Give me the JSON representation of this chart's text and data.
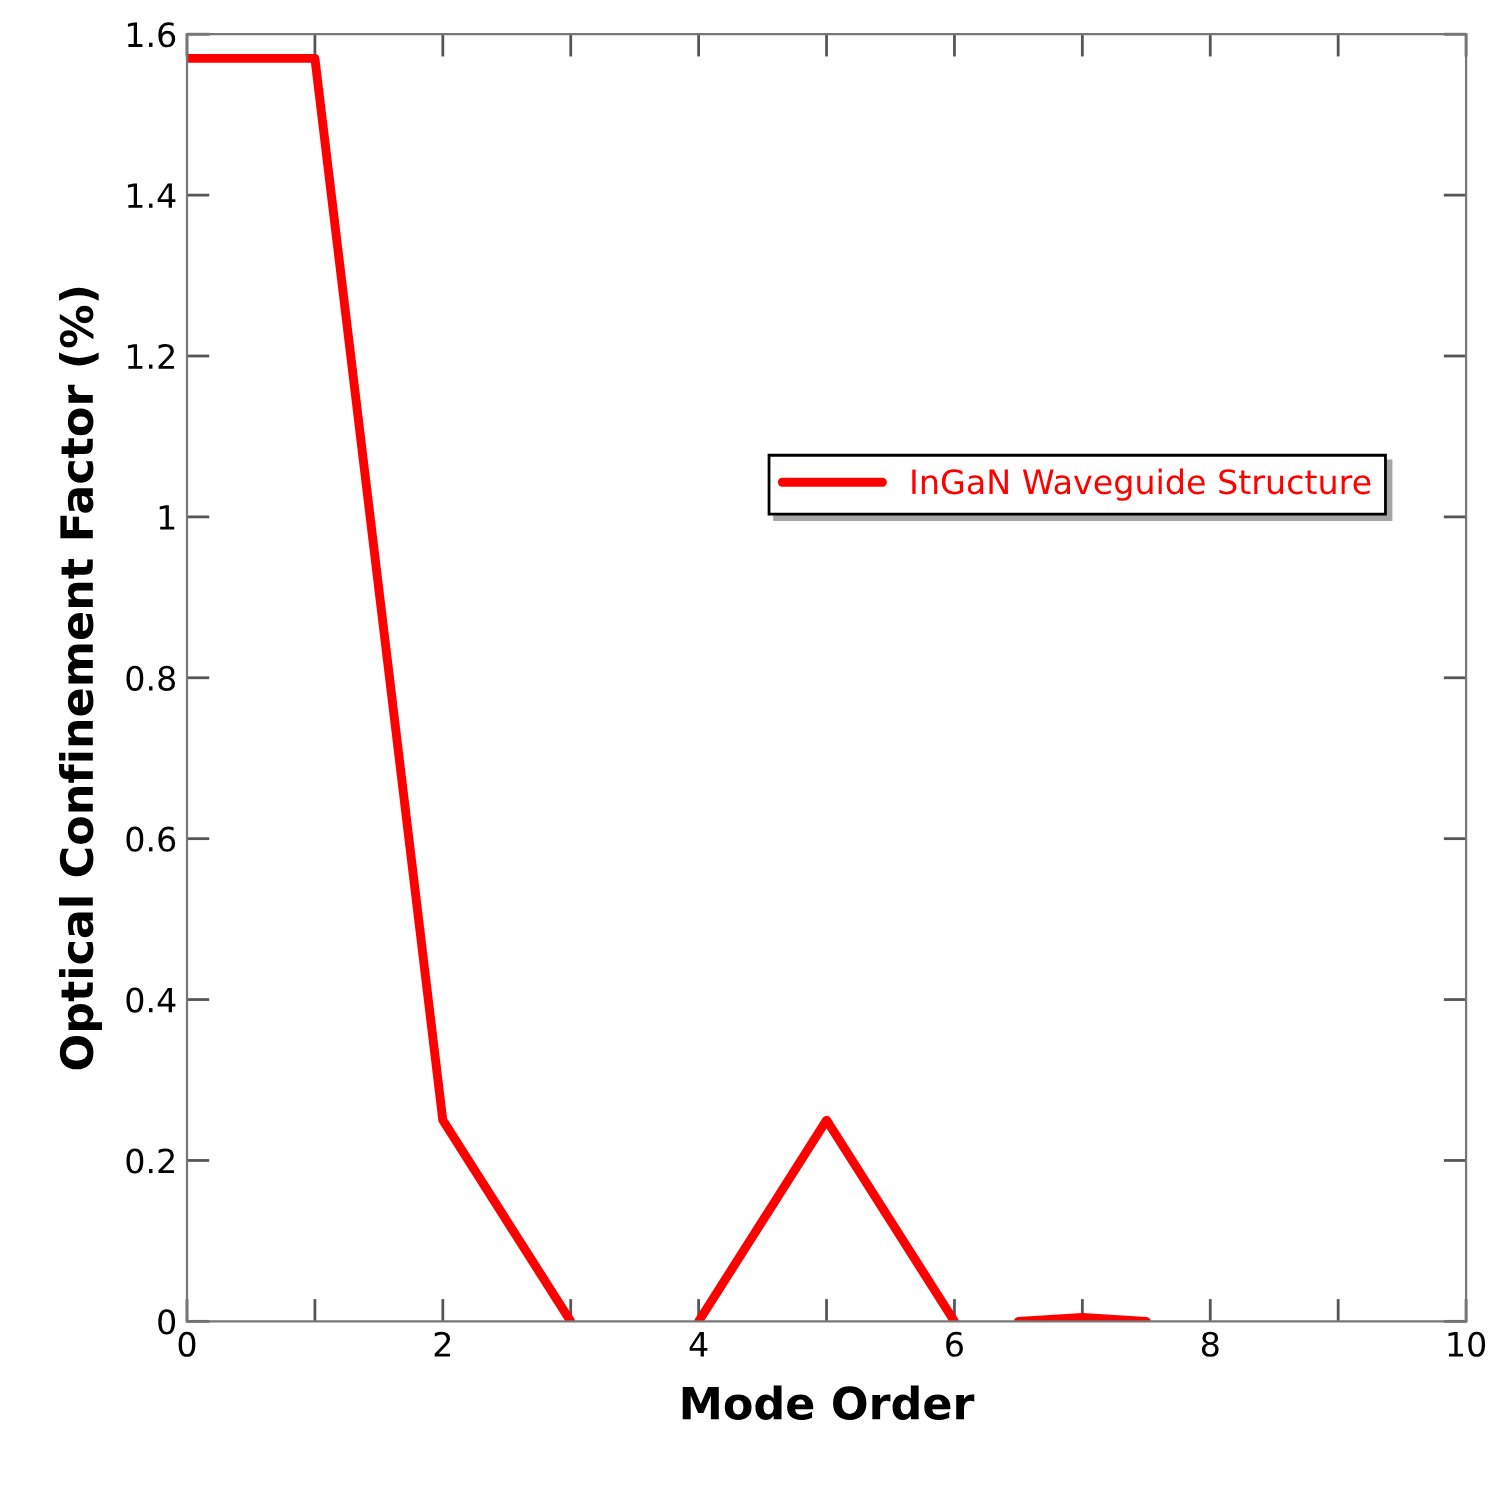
{
  "chart_data": {
    "type": "line",
    "xlabel": "Mode Order",
    "ylabel": "Optical Confinement Factor (%)",
    "x": [
      0,
      1,
      2,
      3,
      3.5,
      4,
      5,
      6,
      6.25,
      6.5,
      7,
      7.5
    ],
    "series": [
      {
        "name": "InGaN Waveguide Structure",
        "color": "#ff0000",
        "values": [
          1.57,
          1.57,
          0.25,
          0,
          null,
          0,
          0.25,
          0,
          null,
          0,
          0.005,
          0
        ]
      }
    ],
    "xlim": [
      0,
      10
    ],
    "ylim": [
      0,
      1.6
    ],
    "xticks": [
      0,
      {
        "value": 1,
        "label": null
      },
      2,
      {
        "value": 3,
        "label": null
      },
      4,
      {
        "value": 5,
        "label": null
      },
      6,
      {
        "value": 7,
        "label": null
      },
      8,
      {
        "value": 9,
        "label": null
      },
      10
    ],
    "yticks": [
      0,
      0.2,
      0.4,
      0.6,
      0.8,
      1,
      1.2,
      1.4,
      1.6
    ],
    "grid": false,
    "legend": "center right",
    "marker": "none",
    "line_style": "solid"
  }
}
